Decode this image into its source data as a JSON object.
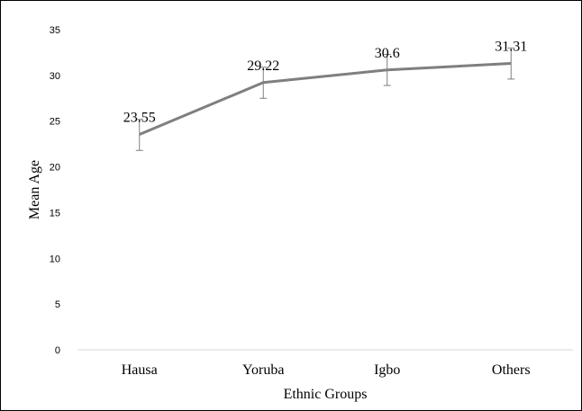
{
  "chart_data": {
    "type": "line",
    "title": "",
    "xlabel": "Ethnic Groups",
    "ylabel": "Mean Age",
    "categories": [
      "Hausa",
      "Yoruba",
      "Igbo",
      "Others"
    ],
    "series": [
      {
        "values": [
          23.55,
          29.22,
          30.6,
          31.31
        ],
        "error_low": [
          21.8,
          27.5,
          28.9,
          29.6
        ],
        "error_high": [
          25.2,
          30.9,
          32.3,
          33.0
        ],
        "data_labels": [
          "23.55",
          "29.22",
          "30.6",
          "31.31"
        ]
      }
    ],
    "ylim": [
      0,
      35
    ],
    "yticks": [
      0,
      5,
      10,
      15,
      20,
      25,
      30,
      35
    ],
    "ytick_labels": [
      "0",
      "5",
      "10",
      "15",
      "20",
      "25",
      "30",
      "35"
    ],
    "grid": false,
    "legend": "none",
    "line_color": "#7f7f7f",
    "error_bar_color": "#7f7f7f",
    "axis_color": "#d9d9d9"
  }
}
